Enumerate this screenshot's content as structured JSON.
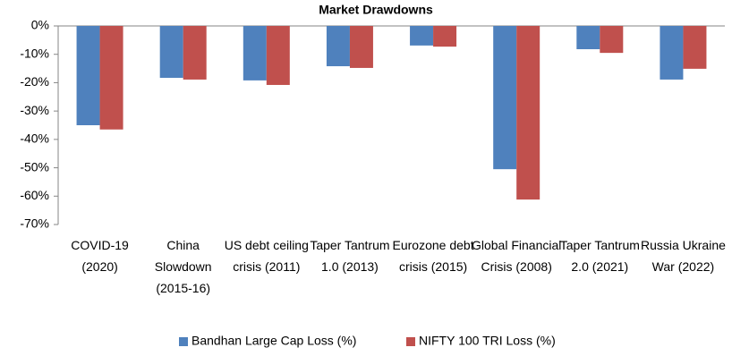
{
  "chart_data": {
    "type": "bar",
    "title": "Market Drawdowns",
    "categories": [
      "COVID-19 (2020)",
      "China Slowdown (2015-16)",
      "US debt ceiling crisis (2011)",
      "Taper Tantrum 1.0 (2013)",
      "Eurozone debt crisis (2015)",
      "Global Financial Crisis (2008)",
      "Taper Tantrum 2.0 (2021)",
      "Russia Ukraine War (2022)"
    ],
    "series": [
      {
        "name": "Bandhan Large Cap Loss (%)",
        "color": "#4f81bd",
        "values": [
          -35,
          -18.3,
          -19.2,
          -14.2,
          -6.9,
          -50.5,
          -8.2,
          -18.9
        ]
      },
      {
        "name": "NIFTY 100 TRI Loss (%)",
        "color": "#c0504d",
        "values": [
          -36.5,
          -18.9,
          -20.8,
          -14.8,
          -7.3,
          -61.2,
          -9.5,
          -15.1
        ]
      }
    ],
    "ylim": [
      -70,
      0
    ],
    "yticks": [
      {
        "value": 0,
        "label": "0%"
      },
      {
        "value": -10,
        "label": "-10%"
      },
      {
        "value": -20,
        "label": "-20%"
      },
      {
        "value": -30,
        "label": "-30%"
      },
      {
        "value": -40,
        "label": "-40%"
      },
      {
        "value": -50,
        "label": "-50%"
      },
      {
        "value": -60,
        "label": "-60%"
      },
      {
        "value": -70,
        "label": "-70%"
      }
    ],
    "legend": "bottom"
  }
}
